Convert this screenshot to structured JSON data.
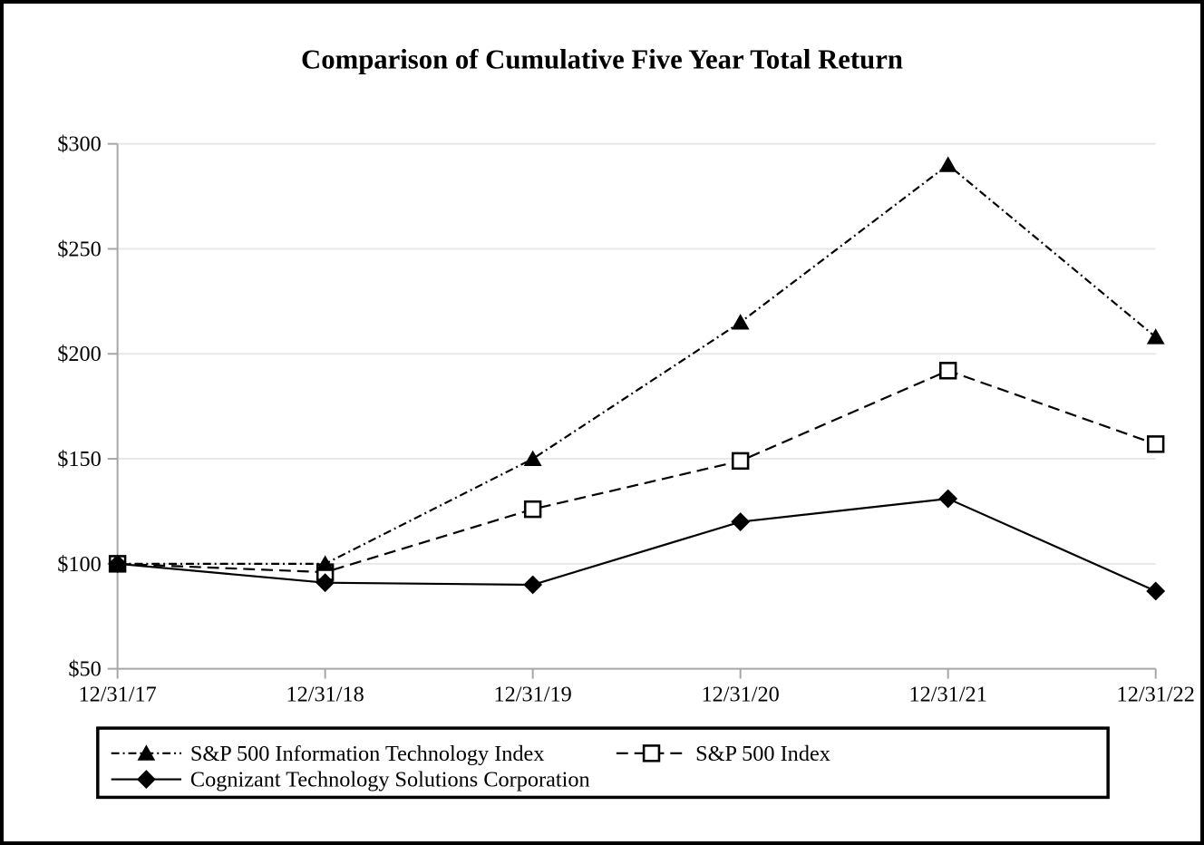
{
  "page": {
    "background": "#ffffff",
    "frame_border_color": "#000000"
  },
  "chart_data": {
    "type": "line",
    "title": "Comparison of Cumulative Five Year Total Return",
    "categories": [
      "12/31/17",
      "12/31/18",
      "12/31/19",
      "12/31/20",
      "12/31/21",
      "12/31/22"
    ],
    "series": [
      {
        "name": "S&P 500 Information Technology Index",
        "marker": "triangle",
        "line_style": "dash-dot",
        "color": "#000000",
        "values": [
          100,
          100,
          150,
          215,
          290,
          208
        ]
      },
      {
        "name": "S&P 500 Index",
        "marker": "open-square",
        "line_style": "dashed",
        "color": "#000000",
        "values": [
          100,
          96,
          126,
          149,
          192,
          157
        ]
      },
      {
        "name": "Cognizant Technology Solutions Corporation",
        "marker": "diamond",
        "line_style": "solid",
        "color": "#000000",
        "values": [
          100,
          91,
          90,
          120,
          131,
          87
        ]
      }
    ],
    "y_axis": {
      "min": 50,
      "max": 300,
      "step": 50,
      "labels": [
        "$50",
        "$100",
        "$150",
        "$200",
        "$250",
        "$300"
      ]
    },
    "x_axis": {
      "labels": [
        "12/31/17",
        "12/31/18",
        "12/31/19",
        "12/31/20",
        "12/31/21",
        "12/31/22"
      ]
    },
    "grid": true,
    "legend_position": "bottom-box",
    "axis_color": "#a6a6a6",
    "gridline_color": "#e8e8e8",
    "line_color": "#000000"
  }
}
